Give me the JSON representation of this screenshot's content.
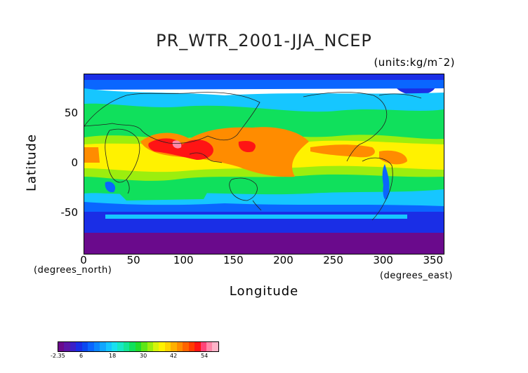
{
  "title": "PR_WTR_2001-JJA_NCEP",
  "units_label": "(units:kg/m¯2)",
  "xlabel": "Longitude",
  "ylabel": "Latitude",
  "x_unit_label": "(degrees_east)",
  "y_unit_label": "(degrees_north)",
  "x_ticks": [
    "0",
    "50",
    "100",
    "150",
    "200",
    "250",
    "300",
    "350"
  ],
  "y_ticks": [
    "50",
    "0",
    "-50"
  ],
  "colorbar": {
    "labels": [
      "-2.35",
      "6",
      "18",
      "30",
      "42",
      "54"
    ],
    "colors": [
      "#6a0a8c",
      "#5b16a8",
      "#3b20c8",
      "#1a2ee6",
      "#0a48f0",
      "#0a66ff",
      "#0b86ff",
      "#11a6ff",
      "#16c6ff",
      "#1ae0f0",
      "#18e8c4",
      "#14e696",
      "#10e05c",
      "#22dc2a",
      "#5ee616",
      "#9cee0e",
      "#d6f40a",
      "#fff200",
      "#ffd400",
      "#ffb000",
      "#ff8c00",
      "#ff6400",
      "#ff3c00",
      "#ff1414",
      "#ff4478",
      "#ff88a8",
      "#ffb4c8"
    ]
  },
  "map": {
    "x_range": [
      0,
      360
    ],
    "y_range": [
      -90,
      90
    ],
    "colors": {
      "c0": "#6a0a8c",
      "c1": "#1a2ee6",
      "c2": "#0a66ff",
      "c3": "#16c6ff",
      "c4": "#10e05c",
      "c5": "#9cee0e",
      "c6": "#fff200",
      "c7": "#ff8c00",
      "c8": "#ff1414",
      "c9": "#ff88a8"
    }
  }
}
